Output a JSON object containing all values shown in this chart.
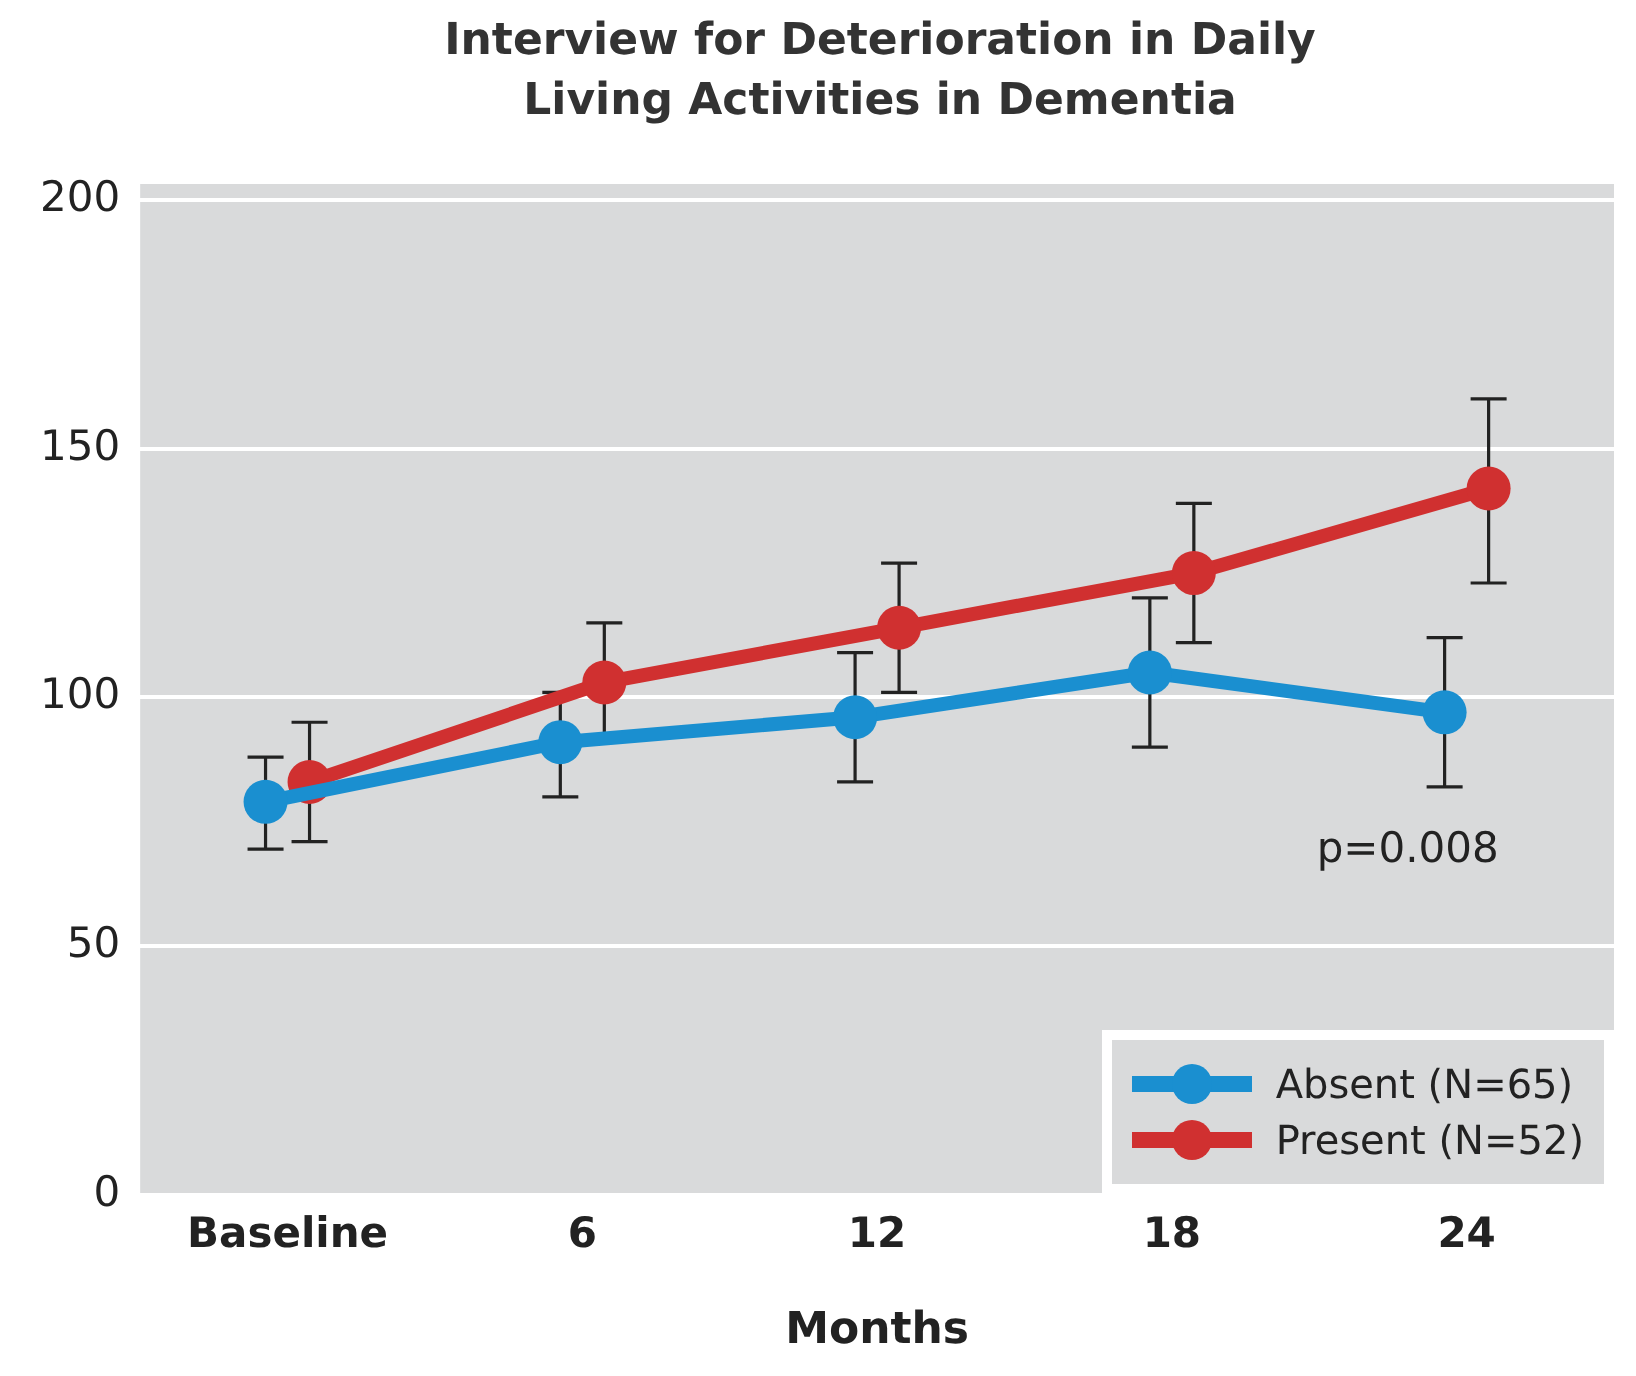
{
  "chart_data": {
    "type": "line",
    "title": "Interview for Deterioration in Daily Living Activities in Dementia",
    "xlabel": "Months",
    "categories": [
      "Baseline",
      "6",
      "12",
      "18",
      "24"
    ],
    "series": [
      {
        "name": "Absent (N=65)",
        "color": "#1a8fd0",
        "values": [
          79,
          91,
          96,
          105,
          97
        ],
        "errors": [
          [
            69.5,
            88
          ],
          [
            80,
            101
          ],
          [
            83,
            109
          ],
          [
            90,
            120
          ],
          [
            82,
            112
          ]
        ]
      },
      {
        "name": "Present (N=52)",
        "color": "#d03030",
        "values": [
          83,
          103,
          114,
          125,
          142
        ],
        "errors": [
          [
            71,
            95
          ],
          [
            92,
            115
          ],
          [
            101,
            127
          ],
          [
            111,
            139
          ],
          [
            123,
            160
          ]
        ]
      }
    ],
    "ylim": [
      0,
      200
    ],
    "yticks": [
      0,
      50,
      100,
      150,
      200
    ],
    "grid": "y",
    "legend": "bottom right",
    "marker": "circle",
    "line_style": "solid",
    "annotations": [
      "p=0.008"
    ]
  }
}
